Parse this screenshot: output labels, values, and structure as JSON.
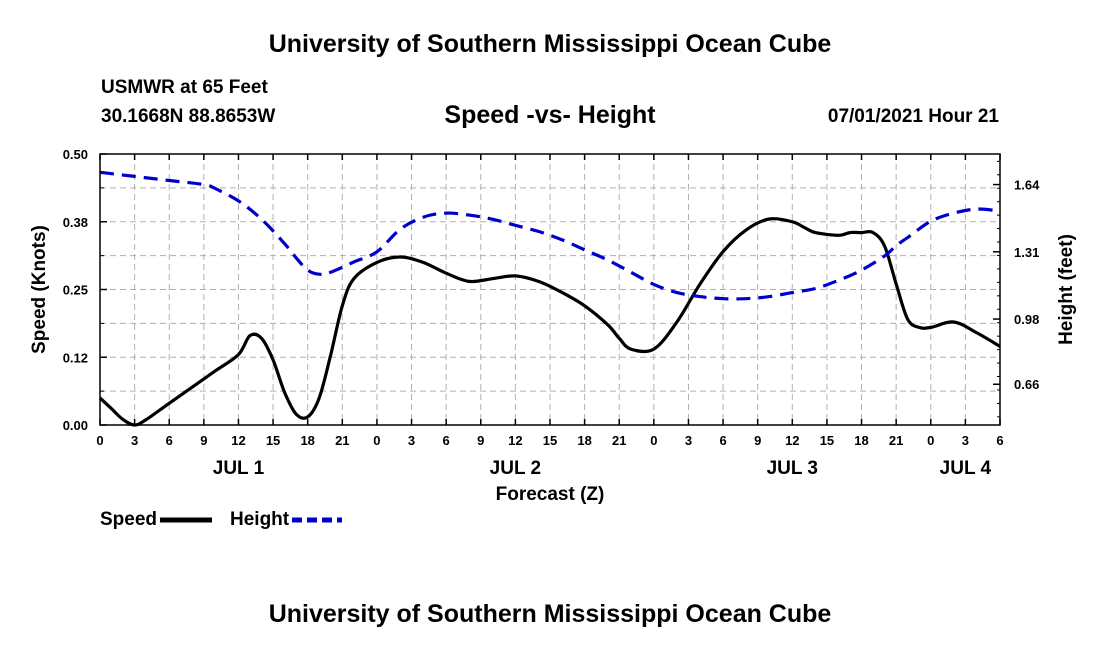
{
  "header": {
    "title": "University of Southern Mississippi Ocean Cube",
    "station": "USMWR at 65 Feet",
    "coordinates": "30.1668N  88.8653W",
    "subtitle": "Speed -vs- Height",
    "datetime": "07/01/2021 Hour 21"
  },
  "footer": {
    "title": "University of Southern Mississippi Ocean Cube"
  },
  "colors": {
    "speed": "#000000",
    "height": "#0000cc",
    "grid": "#b0b0b0"
  },
  "chart_data": {
    "type": "line",
    "xlabel": "Forecast (Z)",
    "ylabel_left": "Speed (Knots)",
    "ylabel_right": "Height (feet)",
    "x_range_hours": [
      0,
      78
    ],
    "x_ticks": [
      "0",
      "3",
      "6",
      "9",
      "12",
      "15",
      "18",
      "21",
      "0",
      "3",
      "6",
      "9",
      "12",
      "15",
      "18",
      "21",
      "0",
      "3",
      "6",
      "9",
      "12",
      "15",
      "18",
      "21",
      "0",
      "3",
      "6"
    ],
    "day_labels": [
      {
        "label": "JUL 1",
        "hour": 12
      },
      {
        "label": "JUL 2",
        "hour": 36
      },
      {
        "label": "JUL 3",
        "hour": 60
      },
      {
        "label": "JUL 4",
        "hour": 75
      }
    ],
    "ylim_left": [
      0,
      0.5
    ],
    "y_ticks_left": [
      "0.00",
      "0.12",
      "0.25",
      "0.38",
      "0.50"
    ],
    "ylim_right": [
      0.46,
      1.79
    ],
    "y_ticks_right": [
      {
        "value": 0.66,
        "label": "0.66"
      },
      {
        "value": 0.98,
        "label": "0.98"
      },
      {
        "value": 1.31,
        "label": "1.31"
      },
      {
        "value": 1.64,
        "label": "1.64"
      }
    ],
    "legend": [
      {
        "name": "Speed",
        "style": "solid"
      },
      {
        "name": "Height",
        "style": "dashed"
      }
    ],
    "series": [
      {
        "name": "Speed",
        "axis": "left",
        "x": [
          0,
          1,
          2,
          3,
          4,
          6,
          8,
          10,
          12,
          13,
          14,
          15,
          16,
          17,
          18,
          19,
          20,
          21,
          22,
          24,
          26,
          28,
          30,
          32,
          34,
          36,
          38,
          40,
          42,
          44,
          45,
          46,
          48,
          50,
          52,
          54,
          56,
          58,
          60,
          61,
          62,
          64,
          65,
          66,
          67,
          68,
          69,
          70,
          71,
          72,
          74,
          76,
          78
        ],
        "y": [
          0.05,
          0.03,
          0.01,
          0.0,
          0.01,
          0.04,
          0.07,
          0.1,
          0.13,
          0.165,
          0.16,
          0.12,
          0.06,
          0.02,
          0.015,
          0.05,
          0.13,
          0.22,
          0.27,
          0.3,
          0.31,
          0.3,
          0.28,
          0.265,
          0.27,
          0.275,
          0.265,
          0.245,
          0.22,
          0.185,
          0.16,
          0.14,
          0.14,
          0.19,
          0.26,
          0.32,
          0.36,
          0.38,
          0.375,
          0.365,
          0.355,
          0.35,
          0.355,
          0.355,
          0.355,
          0.33,
          0.26,
          0.195,
          0.18,
          0.18,
          0.19,
          0.17,
          0.145
        ]
      },
      {
        "name": "Height",
        "axis": "right",
        "x": [
          0,
          3,
          6,
          9,
          10,
          12,
          14,
          16,
          17,
          18,
          19,
          20,
          22,
          24,
          26,
          28,
          30,
          32,
          34,
          36,
          38,
          40,
          42,
          44,
          46,
          48,
          50,
          52,
          54,
          56,
          58,
          60,
          62,
          64,
          66,
          68,
          69,
          70,
          72,
          74,
          76,
          78
        ],
        "y": [
          1.7,
          1.68,
          1.66,
          1.64,
          1.62,
          1.56,
          1.47,
          1.35,
          1.28,
          1.22,
          1.2,
          1.21,
          1.26,
          1.31,
          1.42,
          1.48,
          1.5,
          1.49,
          1.47,
          1.44,
          1.41,
          1.37,
          1.32,
          1.27,
          1.21,
          1.15,
          1.11,
          1.09,
          1.08,
          1.08,
          1.09,
          1.11,
          1.13,
          1.17,
          1.22,
          1.29,
          1.34,
          1.38,
          1.46,
          1.5,
          1.52,
          1.51
        ]
      }
    ]
  }
}
